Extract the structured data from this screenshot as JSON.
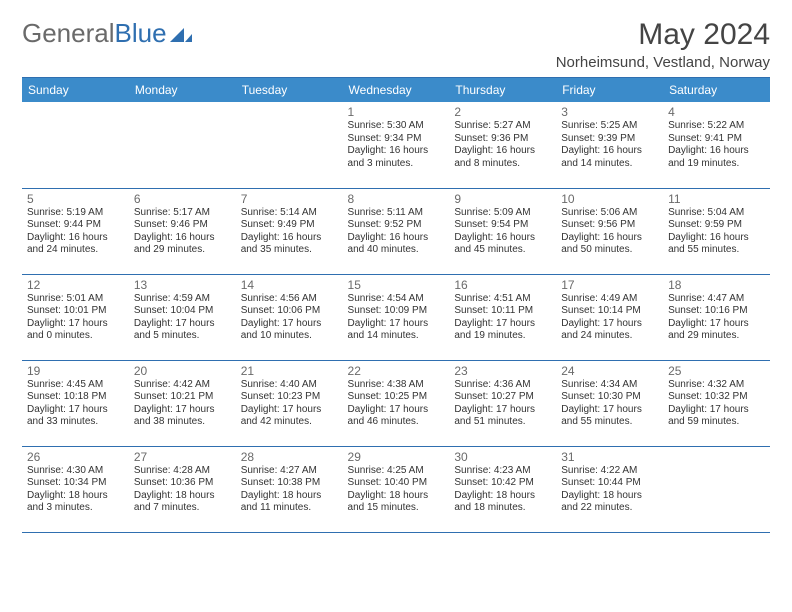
{
  "brand": {
    "part1": "General",
    "part2": "Blue"
  },
  "title": "May 2024",
  "location": "Norheimsund, Vestland, Norway",
  "colors": {
    "header_bg": "#3b8bca",
    "header_text": "#ffffff",
    "rule": "#2f6fb0",
    "daynum": "#6a6a6a",
    "body_text": "#333333",
    "brand_gray": "#6a6a6a",
    "brand_blue": "#2f6fb0",
    "page_bg": "#ffffff"
  },
  "columns": [
    "Sunday",
    "Monday",
    "Tuesday",
    "Wednesday",
    "Thursday",
    "Friday",
    "Saturday"
  ],
  "weeks": [
    [
      null,
      null,
      null,
      {
        "n": "1",
        "sr": "5:30 AM",
        "ss": "9:34 PM",
        "dl": "16 hours and 3 minutes."
      },
      {
        "n": "2",
        "sr": "5:27 AM",
        "ss": "9:36 PM",
        "dl": "16 hours and 8 minutes."
      },
      {
        "n": "3",
        "sr": "5:25 AM",
        "ss": "9:39 PM",
        "dl": "16 hours and 14 minutes."
      },
      {
        "n": "4",
        "sr": "5:22 AM",
        "ss": "9:41 PM",
        "dl": "16 hours and 19 minutes."
      }
    ],
    [
      {
        "n": "5",
        "sr": "5:19 AM",
        "ss": "9:44 PM",
        "dl": "16 hours and 24 minutes."
      },
      {
        "n": "6",
        "sr": "5:17 AM",
        "ss": "9:46 PM",
        "dl": "16 hours and 29 minutes."
      },
      {
        "n": "7",
        "sr": "5:14 AM",
        "ss": "9:49 PM",
        "dl": "16 hours and 35 minutes."
      },
      {
        "n": "8",
        "sr": "5:11 AM",
        "ss": "9:52 PM",
        "dl": "16 hours and 40 minutes."
      },
      {
        "n": "9",
        "sr": "5:09 AM",
        "ss": "9:54 PM",
        "dl": "16 hours and 45 minutes."
      },
      {
        "n": "10",
        "sr": "5:06 AM",
        "ss": "9:56 PM",
        "dl": "16 hours and 50 minutes."
      },
      {
        "n": "11",
        "sr": "5:04 AM",
        "ss": "9:59 PM",
        "dl": "16 hours and 55 minutes."
      }
    ],
    [
      {
        "n": "12",
        "sr": "5:01 AM",
        "ss": "10:01 PM",
        "dl": "17 hours and 0 minutes."
      },
      {
        "n": "13",
        "sr": "4:59 AM",
        "ss": "10:04 PM",
        "dl": "17 hours and 5 minutes."
      },
      {
        "n": "14",
        "sr": "4:56 AM",
        "ss": "10:06 PM",
        "dl": "17 hours and 10 minutes."
      },
      {
        "n": "15",
        "sr": "4:54 AM",
        "ss": "10:09 PM",
        "dl": "17 hours and 14 minutes."
      },
      {
        "n": "16",
        "sr": "4:51 AM",
        "ss": "10:11 PM",
        "dl": "17 hours and 19 minutes."
      },
      {
        "n": "17",
        "sr": "4:49 AM",
        "ss": "10:14 PM",
        "dl": "17 hours and 24 minutes."
      },
      {
        "n": "18",
        "sr": "4:47 AM",
        "ss": "10:16 PM",
        "dl": "17 hours and 29 minutes."
      }
    ],
    [
      {
        "n": "19",
        "sr": "4:45 AM",
        "ss": "10:18 PM",
        "dl": "17 hours and 33 minutes."
      },
      {
        "n": "20",
        "sr": "4:42 AM",
        "ss": "10:21 PM",
        "dl": "17 hours and 38 minutes."
      },
      {
        "n": "21",
        "sr": "4:40 AM",
        "ss": "10:23 PM",
        "dl": "17 hours and 42 minutes."
      },
      {
        "n": "22",
        "sr": "4:38 AM",
        "ss": "10:25 PM",
        "dl": "17 hours and 46 minutes."
      },
      {
        "n": "23",
        "sr": "4:36 AM",
        "ss": "10:27 PM",
        "dl": "17 hours and 51 minutes."
      },
      {
        "n": "24",
        "sr": "4:34 AM",
        "ss": "10:30 PM",
        "dl": "17 hours and 55 minutes."
      },
      {
        "n": "25",
        "sr": "4:32 AM",
        "ss": "10:32 PM",
        "dl": "17 hours and 59 minutes."
      }
    ],
    [
      {
        "n": "26",
        "sr": "4:30 AM",
        "ss": "10:34 PM",
        "dl": "18 hours and 3 minutes."
      },
      {
        "n": "27",
        "sr": "4:28 AM",
        "ss": "10:36 PM",
        "dl": "18 hours and 7 minutes."
      },
      {
        "n": "28",
        "sr": "4:27 AM",
        "ss": "10:38 PM",
        "dl": "18 hours and 11 minutes."
      },
      {
        "n": "29",
        "sr": "4:25 AM",
        "ss": "10:40 PM",
        "dl": "18 hours and 15 minutes."
      },
      {
        "n": "30",
        "sr": "4:23 AM",
        "ss": "10:42 PM",
        "dl": "18 hours and 18 minutes."
      },
      {
        "n": "31",
        "sr": "4:22 AM",
        "ss": "10:44 PM",
        "dl": "18 hours and 22 minutes."
      },
      null
    ]
  ],
  "labels": {
    "sunrise": "Sunrise:",
    "sunset": "Sunset:",
    "daylight": "Daylight:"
  }
}
